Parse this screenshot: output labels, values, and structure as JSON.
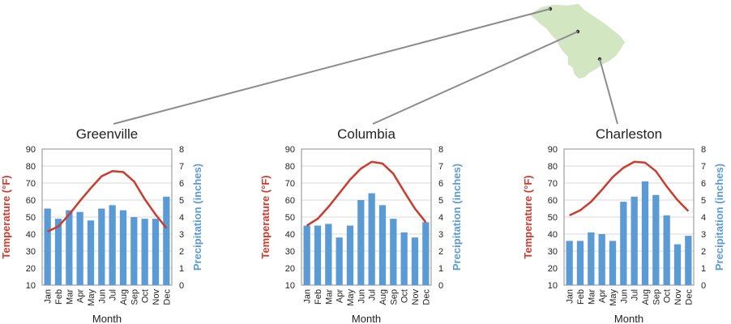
{
  "colors": {
    "temperature": "#cc3b2e",
    "precipitation": "#5b9bd5",
    "map_fill": "#d2e6c2",
    "map_stroke": "#ffffff",
    "leader_line": "#8c8c8c",
    "grid": "#d9d9d9",
    "frame": "#8c8c8c",
    "text": "#222222"
  },
  "chart_data": [
    {
      "type": "bar",
      "title": "Greenville",
      "xlabel": "Month",
      "ylabel_left": "Temperature (°F)",
      "ylabel_right": "Precipitation (inches)",
      "categories": [
        "Jan",
        "Feb",
        "Mar",
        "Apr",
        "May",
        "Jun",
        "Jul",
        "Aug",
        "Sep",
        "Oct",
        "Nov",
        "Dec"
      ],
      "ylim_left": [
        10,
        90
      ],
      "yticks_left": [
        "10",
        "20",
        "30",
        "40",
        "50",
        "60",
        "70",
        "80",
        "90"
      ],
      "ylim_right": [
        0,
        8
      ],
      "yticks_right": [
        "0",
        "1",
        "2",
        "3",
        "4",
        "5",
        "6",
        "7",
        "8"
      ],
      "grid": "horizontal",
      "series": [
        {
          "name": "Temperature (°F)",
          "kind": "line",
          "axis": "left",
          "values": [
            41.5,
            44.5,
            51.5,
            59.5,
            67,
            74,
            77,
            76.5,
            71,
            60.5,
            51.5,
            43.5
          ]
        },
        {
          "name": "Precipitation (inches)",
          "kind": "bar",
          "axis": "right",
          "values": [
            4.5,
            3.9,
            4.4,
            4.3,
            3.8,
            4.5,
            4.7,
            4.4,
            4.0,
            3.9,
            3.9,
            5.2
          ]
        }
      ]
    },
    {
      "type": "bar",
      "title": "Columbia",
      "xlabel": "Month",
      "ylabel_left": "Temperature (°F)",
      "ylabel_right": "Precipitation (inches)",
      "categories": [
        "Jan",
        "Feb",
        "Mar",
        "Apr",
        "May",
        "Jun",
        "Jul",
        "Aug",
        "Sep",
        "Oct",
        "Nov",
        "Dec"
      ],
      "ylim_left": [
        10,
        90
      ],
      "yticks_left": [
        "10",
        "20",
        "30",
        "40",
        "50",
        "60",
        "70",
        "80",
        "90"
      ],
      "ylim_right": [
        0,
        8
      ],
      "yticks_right": [
        "0",
        "1",
        "2",
        "3",
        "4",
        "5",
        "6",
        "7",
        "8"
      ],
      "grid": "horizontal",
      "series": [
        {
          "name": "Temperature (°F)",
          "kind": "line",
          "axis": "left",
          "values": [
            45,
            49,
            56,
            64,
            72,
            78.5,
            82.5,
            81.5,
            75.5,
            65,
            55,
            47
          ]
        },
        {
          "name": "Precipitation (inches)",
          "kind": "bar",
          "axis": "right",
          "values": [
            3.5,
            3.5,
            3.6,
            2.8,
            3.5,
            5.0,
            5.4,
            4.7,
            3.9,
            3.1,
            2.8,
            3.7
          ]
        }
      ]
    },
    {
      "type": "bar",
      "title": "Charleston",
      "xlabel": "Month",
      "ylabel_left": "Temperature (°F)",
      "ylabel_right": "Precipitation (inches)",
      "categories": [
        "Jan",
        "Feb",
        "Mar",
        "Apr",
        "May",
        "Jun",
        "Jul",
        "Aug",
        "Sep",
        "Oct",
        "Nov",
        "Dec"
      ],
      "ylim_left": [
        10,
        90
      ],
      "yticks_left": [
        "10",
        "20",
        "30",
        "40",
        "50",
        "60",
        "70",
        "80",
        "90"
      ],
      "ylim_right": [
        0,
        8
      ],
      "yticks_right": [
        "0",
        "1",
        "2",
        "3",
        "4",
        "5",
        "6",
        "7",
        "8"
      ],
      "grid": "horizontal",
      "series": [
        {
          "name": "Temperature (°F)",
          "kind": "line",
          "axis": "left",
          "values": [
            51,
            54,
            59,
            66,
            73.5,
            79,
            82.5,
            82,
            77,
            68,
            60,
            53.5
          ]
        },
        {
          "name": "Precipitation (inches)",
          "kind": "bar",
          "axis": "right",
          "values": [
            2.6,
            2.6,
            3.1,
            3.0,
            2.6,
            4.9,
            5.2,
            6.1,
            5.3,
            4.1,
            2.4,
            2.9
          ]
        }
      ]
    }
  ]
}
